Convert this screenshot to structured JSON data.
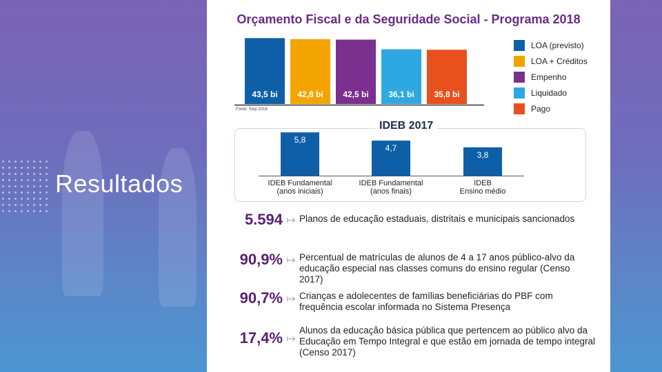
{
  "slide": {
    "title": "Resultados"
  },
  "chart_data": [
    {
      "type": "bar",
      "title": "Orçamento Fiscal e da Seguridade Social - Programa 2018",
      "categories": [
        "LOA (previsto)",
        "LOA + Créditos",
        "Empenho",
        "Liquidado",
        "Pago"
      ],
      "values": [
        43.5,
        42.8,
        42.5,
        36.1,
        35.8
      ],
      "value_labels": [
        "43,5 bi",
        "42,8 bi",
        "42,5 bi",
        "36,1 bi",
        "35,8 bi"
      ],
      "colors": [
        "#0e5fa8",
        "#f4a400",
        "#7b2f8e",
        "#2ea8e0",
        "#e8501d"
      ],
      "legend": "right",
      "source": "Fonte: Siop 2018",
      "ylim": [
        0,
        50
      ]
    },
    {
      "type": "bar",
      "title": "IDEB 2017",
      "categories": [
        "IDEB Fundamental (anos iniciais)",
        "IDEB Fundamental (anos finais)",
        "IDEB Ensino médio"
      ],
      "category_lines": [
        [
          "IDEB Fundamental",
          "(anos iniciais)"
        ],
        [
          "IDEB Fundamental",
          "(anos finais)"
        ],
        [
          "IDEB",
          "Ensino médio"
        ]
      ],
      "values": [
        5.8,
        4.7,
        3.8
      ],
      "value_labels": [
        "5,8",
        "4,7",
        "3,8"
      ],
      "color": "#0e5fa8",
      "ylim": [
        0,
        6
      ]
    }
  ],
  "stats": [
    {
      "value": "5.594",
      "description": "Planos de educação estaduais, distritais e municipais sancionados"
    },
    {
      "value": "90,9%",
      "description": "Percentual de matrículas de alunos de 4 a 17 anos público-alvo da educação especial nas classes comuns do ensino regular (Censo 2017)"
    },
    {
      "value": "90,7%",
      "description": "Crianças e adolecentes de famílias beneficiárias do PBF com frequência escolar informada no Sistema Presença"
    },
    {
      "value": "17,4%",
      "description": "Alunos da educação básica pública que pertencem ao público alvo da Educação em Tempo Integral e que estão em jornada de tempo integral (Censo 2017)"
    }
  ]
}
